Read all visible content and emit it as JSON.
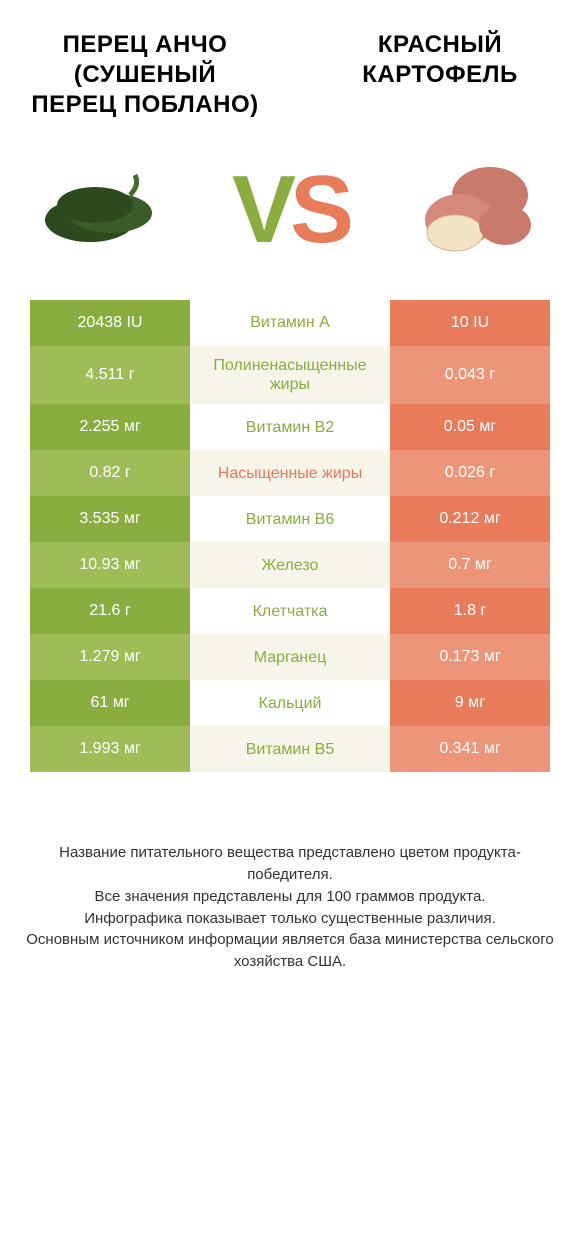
{
  "header": {
    "left_title": "ПЕРЕЦ АНЧО (СУШЕНЫЙ ПЕРЕЦ ПОБЛАНО)",
    "right_title": "КРАСНЫЙ КАРТОФЕЛЬ",
    "vs_v": "V",
    "vs_s": "S"
  },
  "colors": {
    "green_dark": "#8aad3f",
    "green_light": "#9ebd56",
    "orange_dark": "#e77b5a",
    "orange_light": "#ec9579",
    "mid_bg_even": "#f7f4e9",
    "mid_bg_odd": "#ffffff",
    "mid_text_green": "#8aad3f",
    "mid_text_orange": "#e77b5a",
    "cell_text": "#ffffff"
  },
  "table": {
    "left_col_width": 160,
    "mid_col_width": 200,
    "right_col_width": 160,
    "row_padding": 14,
    "font_size": 16,
    "rows": [
      {
        "left": "20438 IU",
        "mid": "Витамин A",
        "right": "10 IU",
        "winner": "left"
      },
      {
        "left": "4.511 г",
        "mid": "Полиненасыщенные жиры",
        "right": "0.043 г",
        "winner": "left"
      },
      {
        "left": "2.255 мг",
        "mid": "Витамин B2",
        "right": "0.05 мг",
        "winner": "left"
      },
      {
        "left": "0.82 г",
        "mid": "Насыщенные жиры",
        "right": "0.026 г",
        "winner": "right"
      },
      {
        "left": "3.535 мг",
        "mid": "Витамин B6",
        "right": "0.212 мг",
        "winner": "left"
      },
      {
        "left": "10.93 мг",
        "mid": "Железо",
        "right": "0.7 мг",
        "winner": "left"
      },
      {
        "left": "21.6 г",
        "mid": "Клетчатка",
        "right": "1.8 г",
        "winner": "left"
      },
      {
        "left": "1.279 мг",
        "mid": "Марганец",
        "right": "0.173 мг",
        "winner": "left"
      },
      {
        "left": "61 мг",
        "mid": "Кальций",
        "right": "9 мг",
        "winner": "left"
      },
      {
        "left": "1.993 мг",
        "mid": "Витамин B5",
        "right": "0.341 мг",
        "winner": "left"
      }
    ]
  },
  "footer": {
    "line1": "Название питательного вещества представлено цветом продукта-победителя.",
    "line2": "Все значения представлены для 100 граммов продукта.",
    "line3": "Инфографика показывает только существенные различия.",
    "line4": "Основным источником информации является база министерства сельского хозяйства США."
  }
}
